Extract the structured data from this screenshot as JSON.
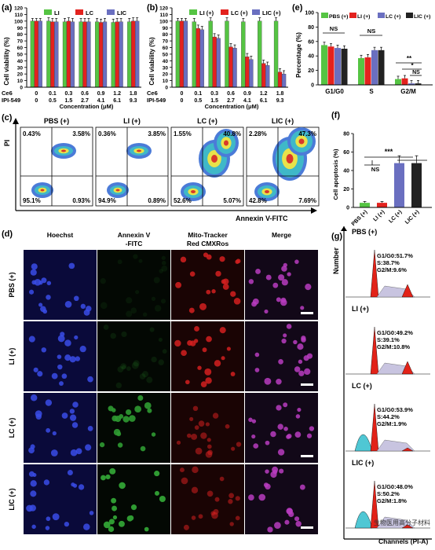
{
  "panel_a": {
    "letter": "(a)",
    "ylabel": "Cell viability (%)",
    "xlabel": "Concentration (μM)",
    "row1_label": "Ce6",
    "row2_label": "IPI-549",
    "row1": [
      "0",
      "0.1",
      "0.3",
      "0.6",
      "0.9",
      "1.2",
      "1.8"
    ],
    "row2": [
      "0",
      "0.5",
      "1.5",
      "2.7",
      "4.1",
      "6.1",
      "9.3"
    ],
    "yticks": [
      "0",
      "10",
      "20",
      "30",
      "40",
      "50",
      "60",
      "70",
      "80",
      "90",
      "100",
      "110",
      "120"
    ],
    "legend": [
      "LI",
      "LC",
      "LIC"
    ]
  },
  "panel_b": {
    "letter": "(b)",
    "ylabel": "Cell viability (%)",
    "xlabel": "Concentration (μM)",
    "row1_label": "Ce6",
    "row2_label": "IPI-549",
    "row1": [
      "0",
      "0.1",
      "0.3",
      "0.6",
      "0.9",
      "1.2",
      "1.8"
    ],
    "row2": [
      "0",
      "0.5",
      "1.5",
      "2.7",
      "4.1",
      "6.1",
      "9.3"
    ],
    "yticks": [
      "0",
      "10",
      "20",
      "30",
      "40",
      "50",
      "60",
      "70",
      "80",
      "90",
      "100",
      "110",
      "120"
    ],
    "legend": [
      "LI (+)",
      "LC (+)",
      "LIC (+)"
    ]
  },
  "panel_c": {
    "letter": "(c)",
    "ylabel": "PI",
    "xlabel": "Annexin V-FITC",
    "plots": [
      {
        "title": "PBS (+)",
        "ul": "0.43%",
        "ur": "3.58%",
        "ll": "95.1%",
        "lr": "0.93%"
      },
      {
        "title": "LI (+)",
        "ul": "0.36%",
        "ur": "3.85%",
        "ll": "94.9%",
        "lr": "0.89%"
      },
      {
        "title": "LC (+)",
        "ul": "1.55%",
        "ur": "40.8%",
        "ll": "52.6%",
        "lr": "5.07%"
      },
      {
        "title": "LIC (+)",
        "ul": "2.28%",
        "ur": "47.3%",
        "ll": "42.8%",
        "lr": "7.69%"
      }
    ]
  },
  "panel_d": {
    "letter": "(d)",
    "columns": [
      "Hoechst",
      "Annexin V\n-FITC",
      "Mito-Tracker\nRed CMXRos",
      "Merge"
    ],
    "rows": [
      "PBS (+)",
      "LI (+)",
      "LC (+)",
      "LIC (+)"
    ]
  },
  "panel_e": {
    "letter": "(e)",
    "ylabel": "Percentage (%)",
    "categories": [
      "G1/G0",
      "S",
      "G2/M"
    ],
    "legend": [
      "PBS (+)",
      "LI (+)",
      "LC (+)",
      "LIC (+)"
    ],
    "yticks": [
      "0",
      "20",
      "40",
      "60",
      "80",
      "100"
    ],
    "sig": [
      "NS",
      "NS",
      "**",
      "*",
      "NS"
    ]
  },
  "panel_f": {
    "letter": "(f)",
    "ylabel": "Cell apoptosis (%)",
    "categories": [
      "PBS (+)",
      "LI (+)",
      "LC (+)",
      "LIC (+)"
    ],
    "yticks": [
      "0",
      "20",
      "40",
      "60",
      "80"
    ],
    "sig": [
      "NS",
      "***"
    ]
  },
  "panel_g": {
    "letter": "(g)",
    "ylabel": "Number",
    "xlabel": "Channels (PI-A)",
    "plots": [
      {
        "title": "PBS (+)",
        "g1": "G1/G0:51.7%",
        "s": "S:38.7%",
        "g2": "G2/M:9.6%"
      },
      {
        "title": "LI (+)",
        "g1": "G1/G0:49.2%",
        "s": "S:39.1%",
        "g2": "G2/M:10.8%"
      },
      {
        "title": "LC (+)",
        "g1": "G1/G0:53.9%",
        "s": "S:44.2%",
        "g2": "G2/M:1.9%"
      },
      {
        "title": "LIC (+)",
        "g1": "G1/G0:48.0%",
        "s": "S:50.2%",
        "g2": "G2/M:1.8%"
      }
    ]
  },
  "watermark": "生物医用高分子材料",
  "colors": {
    "green": "#55c443",
    "red": "#e3221e",
    "blue": "#6a6fc0",
    "black": "#222222"
  },
  "chart_data": [
    {
      "type": "bar",
      "panel": "a",
      "categories": [
        "0/0",
        "0.1/0.5",
        "0.3/1.5",
        "0.6/2.7",
        "0.9/4.1",
        "1.2/6.1",
        "1.8/9.3"
      ],
      "ylim": [
        0,
        120
      ],
      "series": [
        {
          "name": "LI",
          "values": [
            100,
            100,
            99,
            99,
            99,
            98,
            99
          ]
        },
        {
          "name": "LC",
          "values": [
            100,
            99,
            100,
            99,
            98,
            99,
            100
          ]
        },
        {
          "name": "LIC",
          "values": [
            100,
            99,
            99,
            99,
            99,
            99,
            100
          ]
        }
      ]
    },
    {
      "type": "bar",
      "panel": "b",
      "categories": [
        "0/0",
        "0.1/0.5",
        "0.3/1.5",
        "0.6/2.7",
        "0.9/4.1",
        "1.2/6.1",
        "1.8/9.3"
      ],
      "ylim": [
        0,
        120
      ],
      "series": [
        {
          "name": "LI (+)",
          "values": [
            100,
            99,
            100,
            100,
            99,
            100,
            100
          ]
        },
        {
          "name": "LC (+)",
          "values": [
            100,
            89,
            76,
            61,
            46,
            36,
            23
          ]
        },
        {
          "name": "LIC (+)",
          "values": [
            100,
            87,
            74,
            59,
            42,
            33,
            20
          ]
        }
      ]
    },
    {
      "type": "bar",
      "panel": "e",
      "categories": [
        "G1/G0",
        "S",
        "G2/M"
      ],
      "ylim": [
        0,
        100
      ],
      "series": [
        {
          "name": "PBS (+)",
          "values": [
            55,
            37,
            8
          ]
        },
        {
          "name": "LI (+)",
          "values": [
            53,
            38,
            9
          ]
        },
        {
          "name": "LC (+)",
          "values": [
            51,
            48,
            2
          ]
        },
        {
          "name": "LIC (+)",
          "values": [
            50,
            48,
            2
          ]
        }
      ]
    },
    {
      "type": "bar",
      "panel": "f",
      "categories": [
        "PBS (+)",
        "LI (+)",
        "LC (+)",
        "LIC (+)"
      ],
      "ylim": [
        0,
        80
      ],
      "values": [
        5,
        5,
        48,
        48
      ]
    }
  ]
}
